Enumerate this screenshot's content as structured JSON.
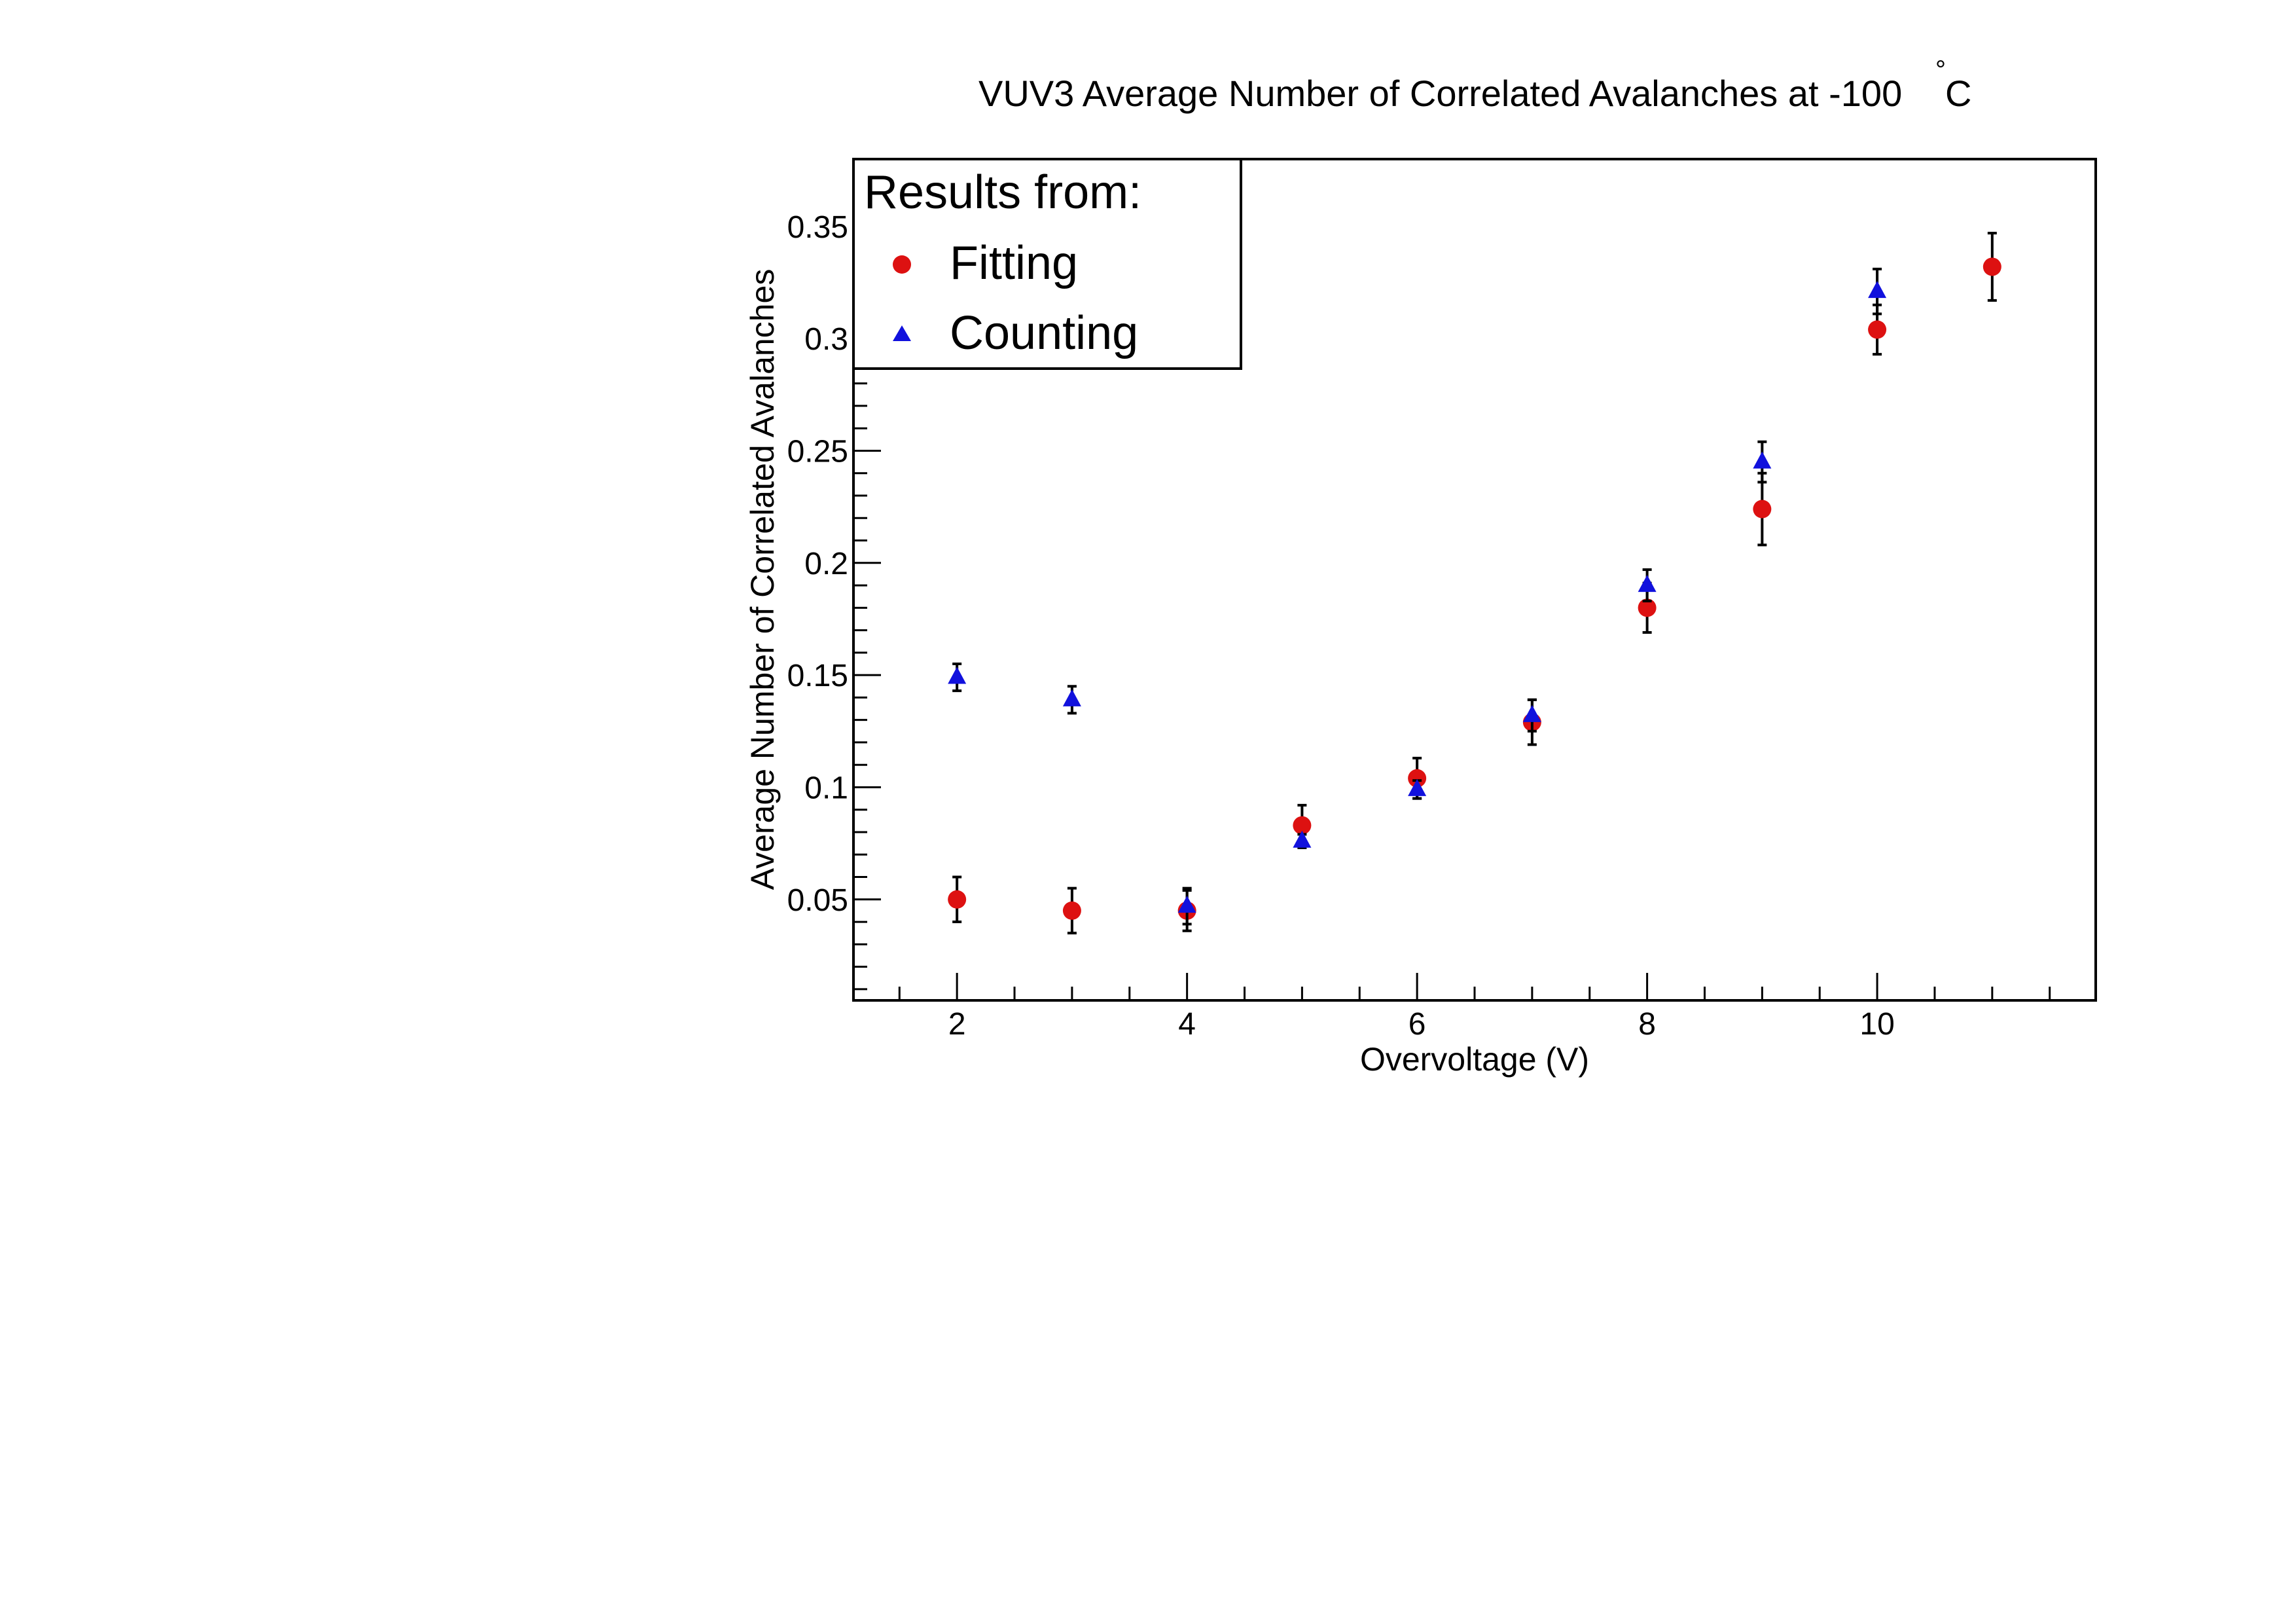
{
  "chart_data": {
    "type": "scatter",
    "title": "VUV3 Average Number of Correlated Avalanches at -100",
    "title_suffix": "C",
    "title_degree": "°",
    "xlabel": "Overvoltage (V)",
    "ylabel": "Average Number of Correlated Avalanches",
    "xlim": [
      1.1,
      11.9
    ],
    "ylim": [
      0.005,
      0.38
    ],
    "x_ticks": [
      {
        "value": 2,
        "label": "2"
      },
      {
        "value": 4,
        "label": "4"
      },
      {
        "value": 6,
        "label": "6"
      },
      {
        "value": 8,
        "label": "8"
      },
      {
        "value": 10,
        "label": "10"
      }
    ],
    "y_ticks": [
      {
        "value": 0.05,
        "label": "0.05"
      },
      {
        "value": 0.1,
        "label": "0.1"
      },
      {
        "value": 0.15,
        "label": "0.15"
      },
      {
        "value": 0.2,
        "label": "0.2"
      },
      {
        "value": 0.25,
        "label": "0.25"
      },
      {
        "value": 0.3,
        "label": "0.3"
      },
      {
        "value": 0.35,
        "label": "0.35"
      }
    ],
    "grid": false,
    "legend": {
      "placement": "top-left",
      "header": "Results from:"
    },
    "series": [
      {
        "name": "Fitting",
        "marker": "circle",
        "color": "#dd1111",
        "x": [
          2,
          3,
          4,
          5,
          6,
          7,
          8,
          9,
          10,
          11
        ],
        "y": [
          0.05,
          0.045,
          0.045,
          0.083,
          0.104,
          0.129,
          0.18,
          0.224,
          0.304,
          0.332
        ],
        "yerr": [
          0.01,
          0.01,
          0.009,
          0.009,
          0.009,
          0.01,
          0.011,
          0.016,
          0.011,
          0.015
        ]
      },
      {
        "name": "Counting",
        "marker": "triangle",
        "color": "#1111dd",
        "x": [
          2,
          3,
          4,
          5,
          6,
          7,
          8,
          9,
          10
        ],
        "y": [
          0.149,
          0.139,
          0.047,
          0.076,
          0.099,
          0.132,
          0.19,
          0.245,
          0.321
        ],
        "yerr": [
          0.006,
          0.006,
          0.008,
          0.003,
          0.004,
          0.007,
          0.007,
          0.009,
          0.01
        ]
      }
    ]
  }
}
